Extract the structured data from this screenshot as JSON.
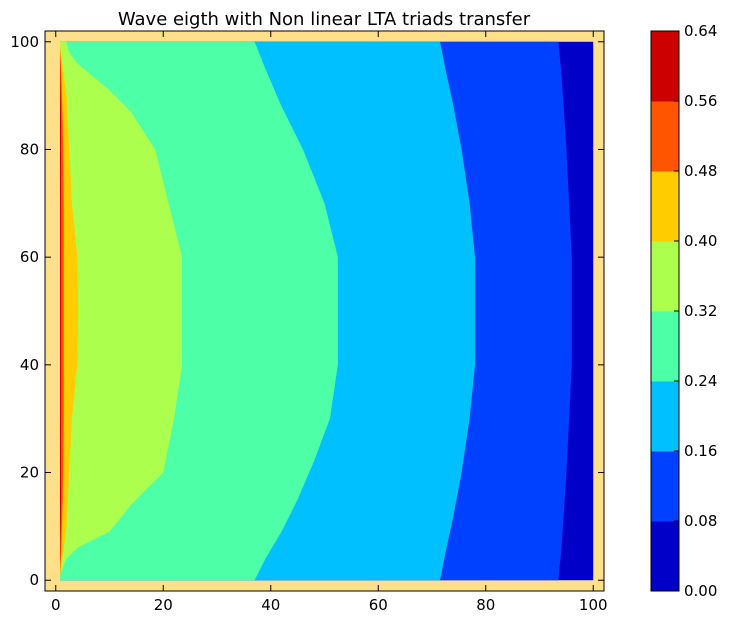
{
  "chart_data": {
    "type": "heatmap",
    "subtype": "filled-contour",
    "title": "Wave eigth with Non linear LTA triads transfer",
    "xlabel": "",
    "ylabel": "",
    "xlim": [
      -2,
      102
    ],
    "ylim": [
      -2,
      102
    ],
    "xticks": [
      0,
      20,
      40,
      60,
      80,
      100
    ],
    "yticks": [
      0,
      20,
      40,
      60,
      80,
      100
    ],
    "colorbar": {
      "ticks": [
        "0.00",
        "0.08",
        "0.16",
        "0.24",
        "0.32",
        "0.40",
        "0.48",
        "0.56",
        "0.64"
      ],
      "levels": [
        0.0,
        0.08,
        0.16,
        0.24,
        0.32,
        0.4,
        0.48,
        0.56,
        0.64
      ],
      "colors": [
        "#0000c8",
        "#0040ff",
        "#00c0ff",
        "#4dffa6",
        "#adff4d",
        "#ffcc00",
        "#ff5500",
        "#cc0000"
      ]
    },
    "colormap": "jet",
    "border_color": "#ffe08a",
    "contours": [
      {
        "level_range": [
          0.32,
          0.4
        ],
        "boundary": [
          [
            0.8,
            0
          ],
          [
            0.8,
            1
          ],
          [
            2,
            4
          ],
          [
            4,
            6
          ],
          [
            7,
            7.5
          ],
          [
            10,
            9
          ],
          [
            14,
            14
          ],
          [
            20,
            20
          ],
          [
            22,
            30
          ],
          [
            23.5,
            40
          ],
          [
            23.5,
            50
          ],
          [
            23.5,
            60
          ],
          [
            21,
            70
          ],
          [
            18.5,
            80
          ],
          [
            14,
            87
          ],
          [
            10,
            91
          ],
          [
            7,
            93.5
          ],
          [
            4,
            96
          ],
          [
            2.5,
            98
          ],
          [
            2,
            100
          ],
          [
            0.8,
            100
          ]
        ]
      },
      {
        "level_range": [
          0.24,
          0.32
        ],
        "boundary": [
          [
            0.8,
            0
          ],
          [
            37,
            0
          ],
          [
            39,
            4
          ],
          [
            42,
            9
          ],
          [
            45,
            15
          ],
          [
            48,
            22
          ],
          [
            51,
            30
          ],
          [
            52.5,
            40
          ],
          [
            52.5,
            50
          ],
          [
            52.5,
            60
          ],
          [
            50,
            70
          ],
          [
            46,
            80
          ],
          [
            42,
            88
          ],
          [
            39,
            95
          ],
          [
            37,
            100
          ],
          [
            0.8,
            100
          ]
        ]
      },
      {
        "level_range": [
          0.16,
          0.24
        ],
        "boundary": [
          [
            0.8,
            0
          ],
          [
            71.5,
            0
          ],
          [
            72.5,
            5
          ],
          [
            74,
            12
          ],
          [
            75.5,
            20
          ],
          [
            77,
            30
          ],
          [
            78,
            40
          ],
          [
            78,
            50
          ],
          [
            78,
            60
          ],
          [
            77,
            70
          ],
          [
            75.5,
            80
          ],
          [
            74,
            88
          ],
          [
            72.5,
            95
          ],
          [
            71.5,
            100
          ],
          [
            0.8,
            100
          ]
        ]
      },
      {
        "level_range": [
          0.08,
          0.16
        ],
        "boundary": [
          [
            0.8,
            0
          ],
          [
            93.5,
            0
          ],
          [
            94,
            5
          ],
          [
            94.5,
            12
          ],
          [
            95,
            20
          ],
          [
            95.5,
            30
          ],
          [
            96,
            40
          ],
          [
            96,
            50
          ],
          [
            96,
            60
          ],
          [
            95.5,
            70
          ],
          [
            95,
            80
          ],
          [
            94.5,
            88
          ],
          [
            94,
            95
          ],
          [
            93.5,
            100
          ],
          [
            0.8,
            100
          ]
        ]
      },
      {
        "level_range": [
          0.4,
          0.48
        ],
        "boundary": [
          [
            0.8,
            0
          ],
          [
            1,
            3
          ],
          [
            1.5,
            6
          ],
          [
            2,
            10
          ],
          [
            2.5,
            20
          ],
          [
            3,
            30
          ],
          [
            4,
            40
          ],
          [
            4.2,
            50
          ],
          [
            4,
            60
          ],
          [
            3,
            70
          ],
          [
            2.5,
            80
          ],
          [
            2,
            90
          ],
          [
            1.5,
            94
          ],
          [
            1,
            97
          ],
          [
            0.8,
            100
          ]
        ]
      },
      {
        "level_range": [
          0.48,
          0.56
        ],
        "boundary": [
          [
            0.8,
            1
          ],
          [
            1,
            5
          ],
          [
            1.3,
            15
          ],
          [
            1.5,
            30
          ],
          [
            1.5,
            50
          ],
          [
            1.5,
            70
          ],
          [
            1.3,
            85
          ],
          [
            1,
            95
          ],
          [
            0.8,
            99
          ]
        ]
      },
      {
        "level_range": [
          0.56,
          0.64
        ],
        "boundary": [
          [
            0.8,
            3
          ],
          [
            1,
            15
          ],
          [
            1,
            50
          ],
          [
            1,
            85
          ],
          [
            0.8,
            97
          ]
        ]
      }
    ]
  }
}
